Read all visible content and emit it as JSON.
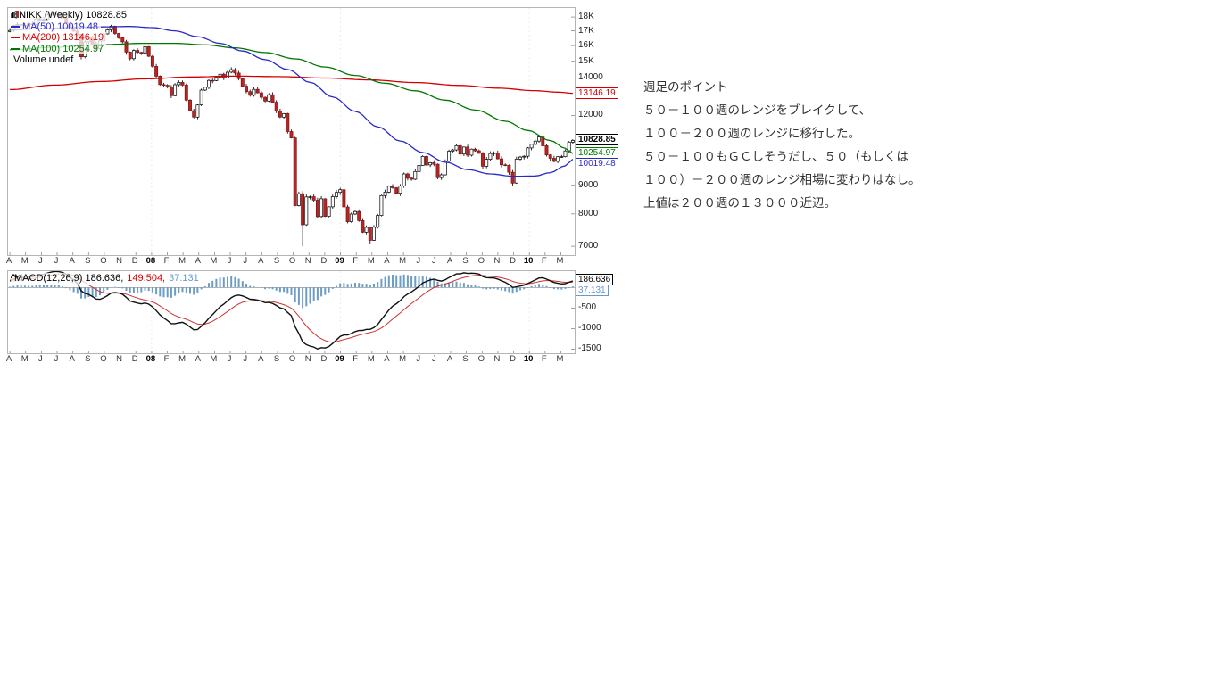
{
  "note": {
    "title": "週足のポイント",
    "lines": [
      "５０－１００週のレンジをブレイクして、",
      "１００－２００週のレンジに移行した。",
      "５０－１００もＧＣしそうだし、５０（もしくは",
      "１００）－２００週のレンジ相場に変わりはなし。",
      "上値は２００週の１３０００近辺。"
    ]
  },
  "legend": {
    "symbol": "$NIKK (Weekly) 10828.85",
    "ma50": "MA(50) 10019.48",
    "ma200": "MA(200) 13146.19",
    "ma100": "MA(100) 10254.97",
    "volume": "Volume undef"
  },
  "macd_legend": {
    "main": "MACD(12,26,9) 186.636,",
    "signal": "149.504,",
    "hist": "37.131"
  },
  "chart_data": {
    "type": "candlestick",
    "symbol": "$NIKK",
    "timeframe": "Weekly",
    "last_price": 10828.85,
    "x_axis": {
      "labels": [
        "A",
        "M",
        "J",
        "J",
        "A",
        "S",
        "O",
        "N",
        "D",
        "08",
        "F",
        "M",
        "A",
        "M",
        "J",
        "J",
        "A",
        "S",
        "O",
        "N",
        "D",
        "09",
        "F",
        "M",
        "A",
        "M",
        "J",
        "J",
        "A",
        "S",
        "O",
        "N",
        "D",
        "10",
        "F",
        "M"
      ],
      "bold": [
        "08",
        "09",
        "10"
      ]
    },
    "price_axis": {
      "scale": "log",
      "min": 6750,
      "max": 18680,
      "ticks": [
        {
          "t": "18K",
          "v": 18000
        },
        {
          "t": "17K",
          "v": 17000
        },
        {
          "t": "16K",
          "v": 16000
        },
        {
          "t": "15K",
          "v": 15000
        },
        {
          "t": "14000",
          "v": 14000
        },
        {
          "t": "12000",
          "v": 12000
        },
        {
          "t": "9000",
          "v": 9000
        },
        {
          "t": "8000",
          "v": 8000
        },
        {
          "t": "7000",
          "v": 7000
        }
      ]
    },
    "weekly_closes": [
      17030,
      17380,
      17450,
      17400,
      17360,
      17500,
      17480,
      17870,
      17790,
      17830,
      18150,
      18190,
      18240,
      18020,
      17930,
      17570,
      17280,
      16980,
      16760,
      15280,
      16250,
      16570,
      16120,
      15820,
      16310,
      16790,
      17070,
      17330,
      16820,
      16520,
      16250,
      15580,
      15160,
      15680,
      15560,
      15510,
      15930,
      15310,
      14690,
      14110,
      13630,
      13590,
      13500,
      13020,
      13620,
      13750,
      13600,
      12780,
      12240,
      11920,
      12530,
      13320,
      13480,
      13860,
      13850,
      14050,
      14220,
      14012,
      14340,
      14490,
      14290,
      13970,
      13540,
      13240,
      13040,
      13360,
      13170,
      12930,
      12730,
      13070,
      12670,
      12210,
      11920,
      12090,
      11230,
      10940,
      8276,
      8693,
      7649,
      8577,
      8583,
      8463,
      7911,
      8512,
      7918,
      8236,
      8588,
      8740,
      8836,
      8230,
      7745,
      7994,
      8077,
      7779,
      7416,
      7568,
      7173,
      7569,
      7946,
      8626,
      8750,
      8964,
      8907,
      8707,
      8977,
      9432,
      9265,
      9225,
      9523,
      9768,
      10136,
      9786,
      9877,
      9816,
      9287,
      9395,
      9945,
      10357,
      10412,
      10597,
      10238,
      10534,
      10187,
      10444,
      10371,
      10266,
      9732,
      10016,
      10257,
      10283,
      10034,
      9789,
      9770,
      9497,
      9081,
      10022,
      10108,
      10142,
      10494,
      10654,
      10798,
      10982,
      10591,
      10198,
      10057,
      9932,
      10123,
      10126,
      10369,
      10751,
      10829
    ],
    "low_overrides": {
      "78": 6994,
      "96": 7054
    },
    "moving_averages": [
      {
        "name": "MA(50)",
        "value": 10019.48,
        "color": "#2929c8",
        "anchors": [
          [
            0,
            17060
          ],
          [
            8,
            17150
          ],
          [
            16,
            17230
          ],
          [
            24,
            17280
          ],
          [
            32,
            17310
          ],
          [
            38,
            17230
          ],
          [
            44,
            17000
          ],
          [
            50,
            16600
          ],
          [
            56,
            16150
          ],
          [
            62,
            15650
          ],
          [
            68,
            15100
          ],
          [
            74,
            14500
          ],
          [
            80,
            13750
          ],
          [
            86,
            12950
          ],
          [
            92,
            12200
          ],
          [
            98,
            11450
          ],
          [
            104,
            10800
          ],
          [
            110,
            10300
          ],
          [
            116,
            9900
          ],
          [
            122,
            9600
          ],
          [
            128,
            9430
          ],
          [
            134,
            9340
          ],
          [
            140,
            9350
          ],
          [
            144,
            9480
          ],
          [
            148,
            9750
          ],
          [
            150,
            10019
          ]
        ]
      },
      {
        "name": "MA(200)",
        "value": 13146.19,
        "color": "#d40000",
        "anchors": [
          [
            0,
            13350
          ],
          [
            12,
            13600
          ],
          [
            24,
            13800
          ],
          [
            36,
            13950
          ],
          [
            48,
            14060
          ],
          [
            60,
            14110
          ],
          [
            72,
            14080
          ],
          [
            84,
            14000
          ],
          [
            96,
            13890
          ],
          [
            108,
            13740
          ],
          [
            120,
            13580
          ],
          [
            130,
            13430
          ],
          [
            140,
            13290
          ],
          [
            146,
            13210
          ],
          [
            150,
            13146
          ]
        ]
      },
      {
        "name": "MA(100)",
        "value": 10254.97,
        "color": "#007700",
        "anchors": [
          [
            0,
            15720
          ],
          [
            12,
            15900
          ],
          [
            24,
            16060
          ],
          [
            36,
            16150
          ],
          [
            44,
            16150
          ],
          [
            52,
            16050
          ],
          [
            60,
            15850
          ],
          [
            68,
            15550
          ],
          [
            76,
            15150
          ],
          [
            84,
            14650
          ],
          [
            92,
            14150
          ],
          [
            100,
            13700
          ],
          [
            108,
            13280
          ],
          [
            116,
            12780
          ],
          [
            124,
            12270
          ],
          [
            132,
            11720
          ],
          [
            138,
            11280
          ],
          [
            144,
            10820
          ],
          [
            148,
            10480
          ],
          [
            150,
            10255
          ]
        ]
      }
    ],
    "macd": {
      "label": "MACD(12,26,9)",
      "macd": 186.636,
      "signal": 149.504,
      "hist": 37.131,
      "range": [
        400,
        -1600
      ],
      "ticks": [
        -500,
        -1000,
        -1500
      ],
      "seed_prehistory": [
        16200,
        17000,
        26
      ]
    },
    "callouts": [
      {
        "text": "13146.19",
        "value": 13146.19,
        "color": "#d40000",
        "bold": false
      },
      {
        "text": "10828.85",
        "value": 10828.85,
        "color": "#000000",
        "bold": true
      },
      {
        "text": "10254.97",
        "value": 10254.97,
        "color": "#007700",
        "bold": false
      },
      {
        "text": "10019.48",
        "value": 10019.48,
        "color": "#2929c8",
        "bold": false
      }
    ],
    "macd_callouts": [
      {
        "text": "186.636",
        "value": 186.636,
        "color": "#000000",
        "bold": false
      },
      {
        "text": "37.131",
        "value": 37.131,
        "color": "#6699cc",
        "bold": false
      }
    ],
    "style": {
      "candle_up_fill": "#ffffff",
      "candle_down_fill": "#b82525",
      "candle_down_stroke": "#7f1010",
      "hist_fill": "#6d9dc5",
      "macd_line": "#111111",
      "signal_line": "#cc3333"
    }
  }
}
